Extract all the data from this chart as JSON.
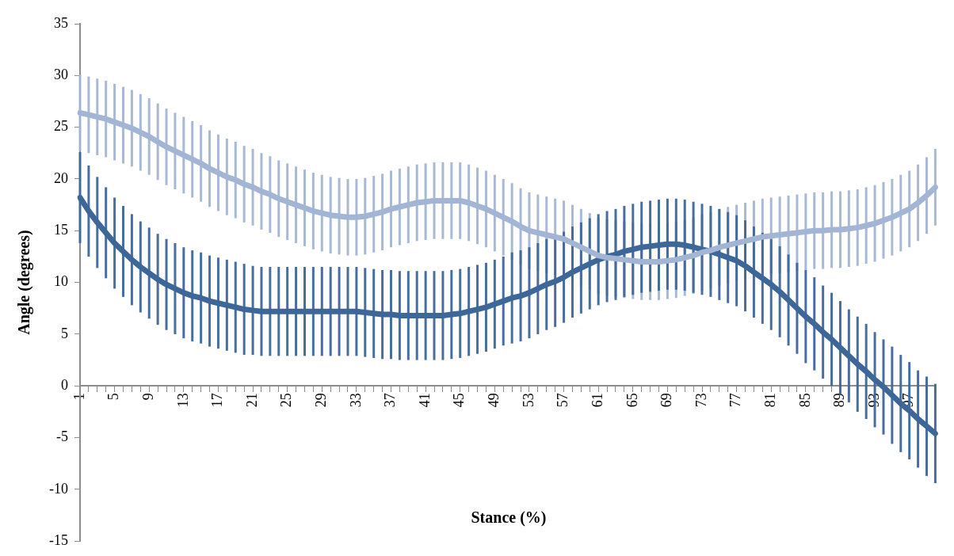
{
  "chart_data": {
    "type": "line",
    "xlabel": "Stance (%)",
    "ylabel": "Angle (degrees)",
    "categories": [
      "1",
      null,
      null,
      null,
      "5",
      null,
      null,
      null,
      "9",
      null,
      null,
      null,
      "13",
      null,
      null,
      null,
      "17",
      null,
      null,
      null,
      "21",
      null,
      null,
      null,
      "25",
      null,
      null,
      null,
      "29",
      null,
      null,
      null,
      "33",
      null,
      null,
      null,
      "37",
      null,
      null,
      null,
      "41",
      null,
      null,
      null,
      "45",
      null,
      null,
      null,
      "49",
      null,
      null,
      null,
      "53",
      null,
      null,
      null,
      "57",
      null,
      null,
      null,
      "61",
      null,
      null,
      null,
      "65",
      null,
      null,
      null,
      "69",
      null,
      null,
      null,
      "73",
      null,
      null,
      null,
      "77",
      null,
      null,
      null,
      "81",
      null,
      null,
      null,
      "85",
      null,
      null,
      null,
      "89",
      null,
      null,
      null,
      "93",
      null,
      null,
      null,
      "97",
      null,
      null,
      null
    ],
    "series": [
      {
        "color": "#a3b5d4",
        "values": [
          26.4,
          26.2,
          26.0,
          25.8,
          25.5,
          25.2,
          24.9,
          24.5,
          24.1,
          23.6,
          23.1,
          22.7,
          22.3,
          21.9,
          21.5,
          21.0,
          20.6,
          20.2,
          19.9,
          19.5,
          19.2,
          18.8,
          18.5,
          18.1,
          17.8,
          17.5,
          17.2,
          16.9,
          16.7,
          16.5,
          16.4,
          16.3,
          16.3,
          16.4,
          16.6,
          16.8,
          17.1,
          17.3,
          17.5,
          17.7,
          17.8,
          17.9,
          17.9,
          17.9,
          17.9,
          17.7,
          17.4,
          17.1,
          16.7,
          16.3,
          15.9,
          15.4,
          15.0,
          14.8,
          14.6,
          14.4,
          14.2,
          13.8,
          13.4,
          13.0,
          12.6,
          12.4,
          12.3,
          12.2,
          12.1,
          12.0,
          12.0,
          12.0,
          12.1,
          12.2,
          12.4,
          12.6,
          12.9,
          13.1,
          13.4,
          13.6,
          13.8,
          14.0,
          14.2,
          14.4,
          14.5,
          14.6,
          14.7,
          14.8,
          14.9,
          15.0,
          15.0,
          15.1,
          15.1,
          15.2,
          15.3,
          15.5,
          15.7,
          16.0,
          16.3,
          16.7,
          17.1,
          17.7,
          18.4,
          19.2
        ],
        "errors": [
          3.7,
          3.7,
          3.7,
          3.7,
          3.7,
          3.7,
          3.7,
          3.7,
          3.7,
          3.7,
          3.7,
          3.7,
          3.7,
          3.7,
          3.7,
          3.7,
          3.7,
          3.7,
          3.7,
          3.7,
          3.7,
          3.7,
          3.7,
          3.7,
          3.7,
          3.7,
          3.7,
          3.7,
          3.7,
          3.7,
          3.7,
          3.7,
          3.7,
          3.7,
          3.7,
          3.7,
          3.7,
          3.7,
          3.7,
          3.7,
          3.7,
          3.7,
          3.7,
          3.7,
          3.7,
          3.7,
          3.7,
          3.7,
          3.7,
          3.7,
          3.7,
          3.7,
          3.7,
          3.7,
          3.7,
          3.7,
          3.7,
          3.7,
          3.7,
          3.7,
          3.7,
          3.7,
          3.7,
          3.7,
          3.7,
          3.7,
          3.7,
          3.7,
          3.7,
          3.7,
          3.7,
          3.7,
          3.7,
          3.7,
          3.7,
          3.7,
          3.7,
          3.7,
          3.7,
          3.7,
          3.7,
          3.7,
          3.7,
          3.7,
          3.7,
          3.7,
          3.7,
          3.7,
          3.7,
          3.7,
          3.7,
          3.7,
          3.7,
          3.7,
          3.7,
          3.7,
          3.7,
          3.7,
          3.7,
          3.7
        ]
      },
      {
        "color": "#3d6699",
        "values": [
          18.2,
          16.9,
          15.8,
          14.8,
          13.8,
          13.0,
          12.2,
          11.5,
          10.9,
          10.3,
          9.8,
          9.4,
          9.0,
          8.7,
          8.5,
          8.2,
          8.0,
          7.8,
          7.6,
          7.4,
          7.3,
          7.2,
          7.2,
          7.2,
          7.2,
          7.2,
          7.2,
          7.2,
          7.2,
          7.2,
          7.2,
          7.2,
          7.2,
          7.1,
          7.0,
          6.9,
          6.9,
          6.8,
          6.8,
          6.8,
          6.8,
          6.8,
          6.8,
          6.9,
          7.0,
          7.2,
          7.4,
          7.6,
          7.9,
          8.2,
          8.5,
          8.7,
          9.0,
          9.4,
          9.8,
          10.1,
          10.5,
          11.0,
          11.4,
          11.8,
          12.2,
          12.5,
          12.7,
          13.0,
          13.2,
          13.4,
          13.5,
          13.6,
          13.7,
          13.7,
          13.6,
          13.4,
          13.2,
          13.0,
          12.7,
          12.4,
          12.1,
          11.6,
          11.0,
          10.4,
          9.8,
          9.1,
          8.3,
          7.5,
          6.7,
          6.0,
          5.2,
          4.5,
          3.7,
          2.9,
          2.1,
          1.4,
          0.6,
          -0.1,
          -0.9,
          -1.7,
          -2.4,
          -3.2,
          -3.9,
          -4.6
        ],
        "errors": [
          4.4,
          4.4,
          4.4,
          4.4,
          4.4,
          4.4,
          4.4,
          4.4,
          4.4,
          4.4,
          4.4,
          4.4,
          4.4,
          4.4,
          4.4,
          4.4,
          4.4,
          4.4,
          4.4,
          4.4,
          4.3,
          4.3,
          4.3,
          4.3,
          4.3,
          4.3,
          4.3,
          4.3,
          4.3,
          4.3,
          4.3,
          4.3,
          4.3,
          4.3,
          4.3,
          4.3,
          4.3,
          4.3,
          4.3,
          4.3,
          4.3,
          4.3,
          4.3,
          4.3,
          4.3,
          4.3,
          4.3,
          4.3,
          4.3,
          4.3,
          4.4,
          4.4,
          4.4,
          4.4,
          4.4,
          4.4,
          4.4,
          4.4,
          4.4,
          4.4,
          4.4,
          4.4,
          4.4,
          4.4,
          4.4,
          4.4,
          4.4,
          4.4,
          4.4,
          4.4,
          4.4,
          4.4,
          4.4,
          4.4,
          4.4,
          4.4,
          4.4,
          4.4,
          4.4,
          4.4,
          4.4,
          4.4,
          4.4,
          4.4,
          4.5,
          4.5,
          4.5,
          4.5,
          4.5,
          4.5,
          4.6,
          4.6,
          4.6,
          4.6,
          4.7,
          4.7,
          4.7,
          4.7,
          4.8,
          4.8
        ]
      }
    ],
    "ylim": [
      -15,
      35
    ],
    "yticks": [
      -15,
      -10,
      -5,
      0,
      5,
      10,
      15,
      20,
      25,
      30,
      35
    ],
    "grid": false,
    "legend": false
  }
}
